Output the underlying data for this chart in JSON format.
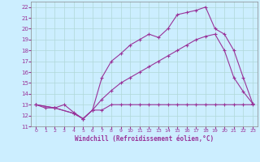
{
  "background_color": "#cceeff",
  "grid_color": "#aadddd",
  "line_color": "#993399",
  "xlabel": "Windchill (Refroidissement éolien,°C)",
  "xlim": [
    -0.5,
    23.5
  ],
  "ylim": [
    11,
    22.5
  ],
  "xticks": [
    0,
    1,
    2,
    3,
    4,
    5,
    6,
    7,
    8,
    9,
    10,
    11,
    12,
    13,
    14,
    15,
    16,
    17,
    18,
    19,
    20,
    21,
    22,
    23
  ],
  "yticks": [
    11,
    12,
    13,
    14,
    15,
    16,
    17,
    18,
    19,
    20,
    21,
    22
  ],
  "line1_x": [
    0,
    1,
    2,
    3,
    4,
    5,
    6,
    7,
    8,
    9,
    10,
    11,
    12,
    13,
    14,
    15,
    16,
    17,
    18,
    19,
    20,
    21,
    22,
    23
  ],
  "line1_y": [
    13,
    12.7,
    12.7,
    13.0,
    12.3,
    11.7,
    12.5,
    12.5,
    13,
    13,
    13,
    13,
    13,
    13,
    13,
    13,
    13,
    13,
    13,
    13,
    13,
    13,
    13,
    13
  ],
  "line2_x": [
    0,
    2,
    4,
    5,
    6,
    7,
    8,
    9,
    10,
    11,
    12,
    13,
    14,
    15,
    16,
    17,
    18,
    19,
    20,
    21,
    22,
    23
  ],
  "line2_y": [
    13,
    12.7,
    12.2,
    11.7,
    12.5,
    13.5,
    14.3,
    15.0,
    15.5,
    16.0,
    16.5,
    17.0,
    17.5,
    18.0,
    18.5,
    19.0,
    19.3,
    19.5,
    18.0,
    15.5,
    14.2,
    13.1
  ],
  "line3_x": [
    0,
    2,
    4,
    5,
    6,
    7,
    8,
    9,
    10,
    11,
    12,
    13,
    14,
    15,
    16,
    17,
    18,
    19,
    20,
    21,
    22,
    23
  ],
  "line3_y": [
    13,
    12.7,
    12.2,
    11.7,
    12.5,
    15.5,
    17.0,
    17.7,
    18.5,
    19.0,
    19.5,
    19.2,
    20.0,
    21.3,
    21.5,
    21.7,
    22.0,
    20.0,
    19.5,
    18.0,
    15.5,
    13.1
  ]
}
